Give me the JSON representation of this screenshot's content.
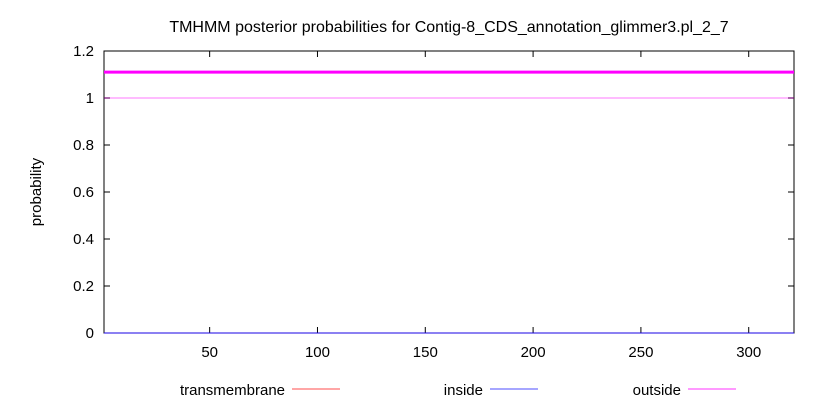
{
  "chart_data": {
    "type": "line",
    "title": "TMHMM posterior probabilities for Contig-8_CDS_annotation_glimmer3.pl_2_7",
    "xlabel": "",
    "ylabel": "probability",
    "xlim": [
      1,
      321
    ],
    "ylim": [
      0,
      1.2
    ],
    "x_ticks": [
      50,
      100,
      150,
      200,
      250,
      300
    ],
    "y_ticks": [
      0,
      0.2,
      0.4,
      0.6,
      0.8,
      1,
      1.2
    ],
    "x_tick_labels": [
      "50",
      "100",
      "150",
      "200",
      "250",
      "300"
    ],
    "y_tick_labels": [
      "0",
      "0.2",
      "0.4",
      "0.6",
      "0.8",
      "1",
      "1.2"
    ],
    "grid": false,
    "legend_position": "bottom",
    "series": [
      {
        "name": "transmembrane",
        "color": "#ff0000",
        "x": [
          1,
          321
        ],
        "y": [
          0,
          0
        ]
      },
      {
        "name": "inside",
        "color": "#0000ff",
        "x": [
          1,
          321
        ],
        "y": [
          0,
          0
        ]
      },
      {
        "name": "outside",
        "color": "#ff00ff",
        "x": [
          1,
          321
        ],
        "y": [
          1,
          1
        ]
      }
    ],
    "topology_band": {
      "color": "#ff00ff",
      "y": 1.11,
      "x": [
        1,
        321
      ]
    }
  }
}
